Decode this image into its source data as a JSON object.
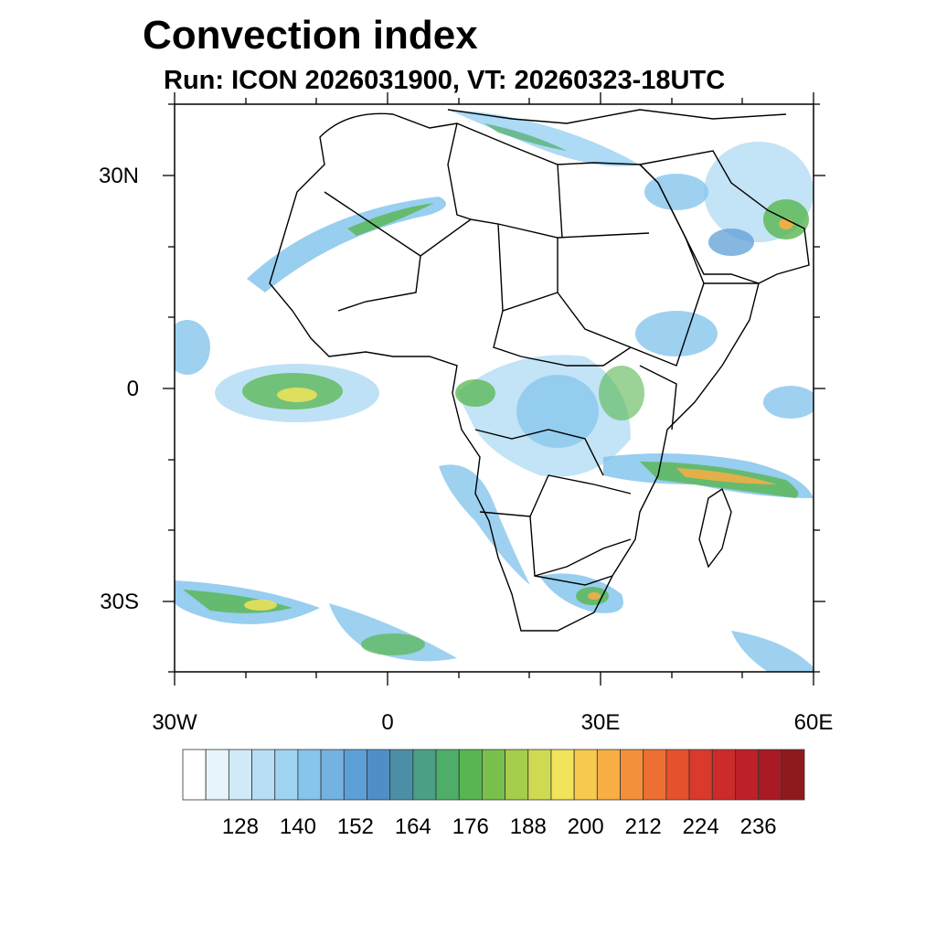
{
  "title": "Convection index",
  "subtitle": "Run: ICON 2026031900,  VT: 20260323-18UTC",
  "map": {
    "region": "Africa",
    "lon_range": [
      -30,
      60
    ],
    "lat_range": [
      -40,
      40
    ],
    "lat_labels": [
      "30N",
      "0",
      "30S"
    ],
    "lon_labels": [
      "30W",
      "0",
      "30E",
      "60E"
    ]
  },
  "colorbar": {
    "tick_labels": [
      "128",
      "140",
      "152",
      "164",
      "176",
      "188",
      "200",
      "212",
      "224",
      "236"
    ],
    "colors": [
      "#ffffff",
      "#e8f4fc",
      "#d0eaf8",
      "#b8def5",
      "#9fd3f2",
      "#86c5ec",
      "#74b2e2",
      "#5d9fd7",
      "#4f8fc6",
      "#4a8fa6",
      "#4a9f86",
      "#4fad6a",
      "#57b64f",
      "#78c04b",
      "#a6cd4b",
      "#cfda52",
      "#f1e35a",
      "#f7c94f",
      "#f8ad45",
      "#f4903c",
      "#ee6f33",
      "#e5512d",
      "#da3a2b",
      "#cd2a2a",
      "#bd2028",
      "#a81b24",
      "#8f1a1d"
    ]
  }
}
